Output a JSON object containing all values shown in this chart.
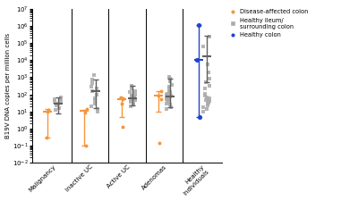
{
  "categories": [
    "Malignancy",
    "Inactive UC",
    "Active UC",
    "Adenomas",
    "Healthy\nIndividuals"
  ],
  "ylabel": "B19V DNA copies per million cells",
  "ylim": [
    0.01,
    10000000.0
  ],
  "orange_color": "#F5963E",
  "gray_color": "#AAAAAA",
  "blue_color": "#2244CC",
  "legend_labels": [
    "Disease-affected colon",
    "Healthy ileum/\nsurrounding colon",
    "Healthy colon"
  ],
  "orange_points": {
    "Malignancy": [
      0.3,
      10,
      12
    ],
    "Inactive UC": [
      0.1,
      9,
      14
    ],
    "Active UC": [
      1.2,
      30,
      50,
      65
    ],
    "Adenomas": [
      0.15,
      50,
      80,
      150
    ]
  },
  "gray_points": {
    "Malignancy": [
      12,
      16,
      22,
      28,
      35,
      42,
      50,
      55,
      65
    ],
    "Inactive UC": [
      10,
      14,
      20,
      30,
      45,
      60,
      100,
      160,
      220,
      300,
      450,
      750,
      1300
    ],
    "Active UC": [
      20,
      25,
      30,
      35,
      40,
      45,
      50,
      55,
      60,
      65,
      70,
      80,
      90,
      100,
      130,
      160,
      220,
      320
    ],
    "Adenomas": [
      14,
      18,
      25,
      30,
      38,
      44,
      50,
      55,
      60,
      68,
      72,
      82,
      100,
      110,
      130,
      160,
      210,
      270,
      350,
      550,
      850,
      1100
    ],
    "Healthy\nIndividuals": [
      10,
      14,
      18,
      22,
      28,
      34,
      42,
      48,
      55,
      62,
      70,
      85,
      110,
      220,
      330,
      500,
      800,
      2000,
      6000,
      60000,
      250000
    ]
  },
  "blue_points": {
    "Healthy\nIndividuals": [
      5,
      11000,
      1200000
    ]
  },
  "orange_median": {
    "Malignancy": [
      10,
      9.7,
      4.7
    ],
    "Inactive UC": [
      11,
      10.9,
      2.0
    ],
    "Active UC": [
      50,
      45,
      20
    ],
    "Adenomas": [
      80,
      70,
      80
    ]
  },
  "gray_median": {
    "Malignancy": [
      28,
      20,
      35
    ],
    "Inactive UC": [
      160,
      145,
      600
    ],
    "Active UC": [
      58,
      36,
      260
    ],
    "Adenomas": [
      75,
      58,
      800
    ],
    "Healthy\nIndividuals": [
      16000,
      15500,
      240000
    ]
  },
  "blue_median": {
    "Healthy\nIndividuals": [
      11000,
      10995,
      1189000
    ]
  }
}
